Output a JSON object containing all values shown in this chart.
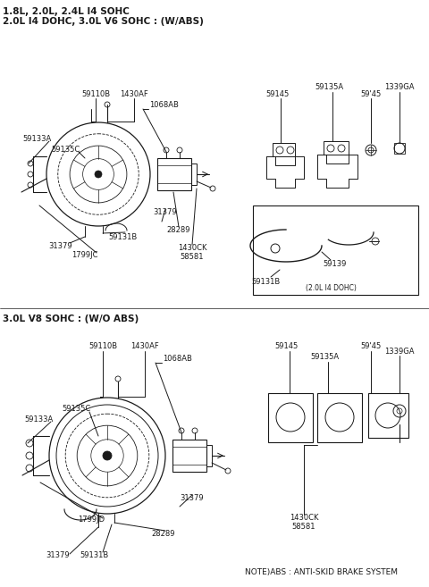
{
  "bg_color": "#ffffff",
  "line_color": "#1a1a1a",
  "title1": "1.8L, 2.0L, 2.4L I4 SOHC",
  "title2": "2.0L I4 DOHC, 3.0L V6 SOHC : (W/ABS)",
  "title3": "3.0L V8 SOHC : (W/O ABS)",
  "note": "NOTE)ABS : ANTI-SKID BRAKE SYSTEM",
  "fs_title": 7.5,
  "fs_label": 6.0,
  "fs_note": 6.5
}
